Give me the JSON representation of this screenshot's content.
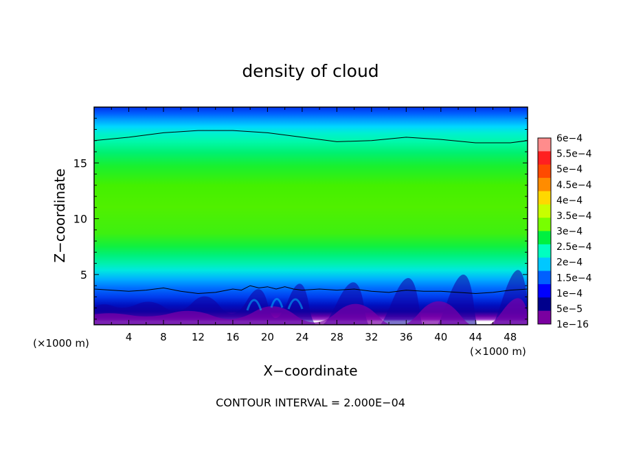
{
  "chart_data": {
    "type": "heatmap",
    "title": "density of cloud",
    "xlabel": "X−coordinate",
    "ylabel": "Z−coordinate",
    "x_unit": "(×1000 m)",
    "y_unit": "(×1000 m)",
    "xlim": [
      0,
      50
    ],
    "ylim": [
      0.5,
      20
    ],
    "x_ticks": [
      4,
      8,
      12,
      16,
      20,
      24,
      28,
      32,
      36,
      40,
      44,
      48
    ],
    "y_ticks": [
      5,
      10,
      15
    ],
    "footer": "CONTOUR INTERVAL = 2.000E−04",
    "colorbar": {
      "labels": [
        "6e−4",
        "5.5e−4",
        "5e−4",
        "4.5e−4",
        "4e−4",
        "3.5e−4",
        "3e−4",
        "2.5e−4",
        "2e−4",
        "1.5e−4",
        "1e−4",
        "5e−5",
        "1e−16"
      ],
      "values": [
        0.0006,
        0.00055,
        0.0005,
        0.00045,
        0.0004,
        0.00035,
        0.0003,
        0.00025,
        0.0002,
        0.00015,
        0.0001,
        5e-05,
        1e-16
      ],
      "colors": [
        "#ff8c8c",
        "#ff2020",
        "#ff4a00",
        "#ff8c00",
        "#ffd800",
        "#c8ff00",
        "#78ff00",
        "#00f040",
        "#00ffc0",
        "#00c8ff",
        "#0060ff",
        "#0000ff",
        "#00008c",
        "#7a00a0"
      ]
    },
    "contour_lines": [
      {
        "level": 0.0002,
        "x": [
          0,
          4,
          8,
          12,
          16,
          20,
          24,
          28,
          32,
          36,
          40,
          44,
          48,
          50
        ],
        "z": [
          17.0,
          17.3,
          17.7,
          17.9,
          17.9,
          17.7,
          17.3,
          16.9,
          17.0,
          17.3,
          17.1,
          16.8,
          16.8,
          17.0
        ]
      },
      {
        "level": 0.0002,
        "x": [
          0,
          2,
          4,
          6,
          8,
          10,
          12,
          14,
          16,
          17,
          18,
          19,
          20,
          21,
          22,
          23,
          24,
          26,
          28,
          30,
          32,
          34,
          36,
          38,
          40,
          42,
          44,
          46,
          48,
          50
        ],
        "z": [
          3.7,
          3.6,
          3.5,
          3.6,
          3.8,
          3.5,
          3.3,
          3.4,
          3.7,
          3.6,
          4.0,
          3.8,
          3.9,
          3.7,
          3.9,
          3.7,
          3.6,
          3.7,
          3.6,
          3.7,
          3.5,
          3.4,
          3.6,
          3.5,
          3.5,
          3.4,
          3.3,
          3.4,
          3.6,
          3.7
        ]
      }
    ]
  }
}
